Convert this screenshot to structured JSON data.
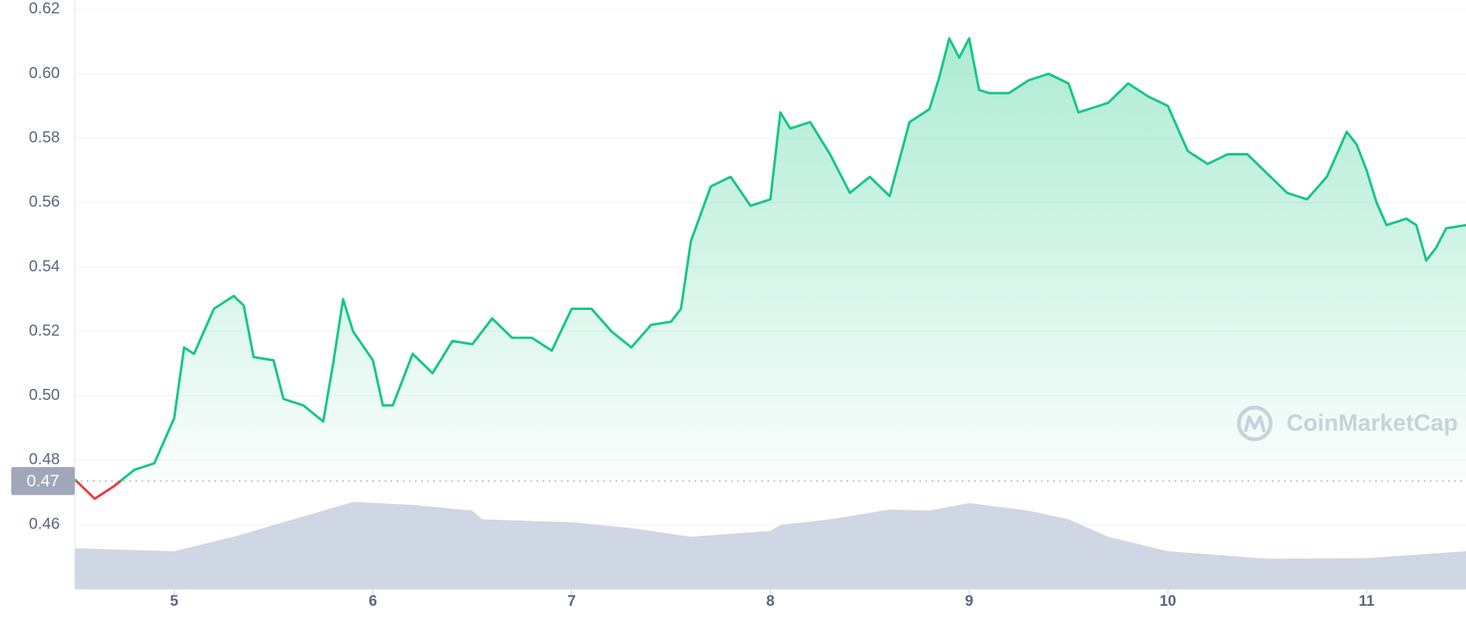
{
  "chart_data": {
    "type": "line",
    "x": [
      4.5,
      4.6,
      4.7,
      4.8,
      4.9,
      5.0,
      5.05,
      5.1,
      5.2,
      5.3,
      5.35,
      5.4,
      5.5,
      5.55,
      5.65,
      5.75,
      5.8,
      5.85,
      5.9,
      6.0,
      6.05,
      6.1,
      6.2,
      6.3,
      6.4,
      6.5,
      6.6,
      6.7,
      6.8,
      6.9,
      7.0,
      7.1,
      7.2,
      7.3,
      7.4,
      7.5,
      7.55,
      7.6,
      7.7,
      7.8,
      7.9,
      8.0,
      8.05,
      8.1,
      8.2,
      8.3,
      8.4,
      8.5,
      8.6,
      8.7,
      8.8,
      8.85,
      8.9,
      8.95,
      9.0,
      9.05,
      9.1,
      9.2,
      9.3,
      9.4,
      9.5,
      9.55,
      9.7,
      9.8,
      9.9,
      10.0,
      10.1,
      10.2,
      10.3,
      10.4,
      10.5,
      10.6,
      10.7,
      10.8,
      10.9,
      10.95,
      11.0,
      11.05,
      11.1,
      11.2,
      11.25,
      11.3,
      11.35,
      11.4,
      11.5
    ],
    "series": [
      {
        "color": "#16c784",
        "down_color": "#ea3943",
        "values": [
          0.474,
          0.468,
          0.472,
          0.477,
          0.479,
          0.493,
          0.515,
          0.513,
          0.527,
          0.531,
          0.528,
          0.512,
          0.511,
          0.499,
          0.497,
          0.492,
          0.51,
          0.53,
          0.52,
          0.511,
          0.497,
          0.497,
          0.513,
          0.507,
          0.517,
          0.516,
          0.524,
          0.518,
          0.518,
          0.514,
          0.527,
          0.527,
          0.52,
          0.515,
          0.522,
          0.523,
          0.527,
          0.548,
          0.565,
          0.568,
          0.559,
          0.561,
          0.588,
          0.583,
          0.585,
          0.575,
          0.563,
          0.568,
          0.562,
          0.585,
          0.589,
          0.599,
          0.611,
          0.605,
          0.611,
          0.595,
          0.594,
          0.594,
          0.598,
          0.6,
          0.597,
          0.588,
          0.591,
          0.597,
          0.593,
          0.59,
          0.576,
          0.572,
          0.575,
          0.575,
          0.569,
          0.563,
          0.561,
          0.568,
          0.582,
          0.578,
          0.57,
          0.56,
          0.553,
          0.555,
          0.553,
          0.542,
          0.546,
          0.552,
          0.553
        ]
      }
    ],
    "volume": {
      "color": "#cfd6e4",
      "x": [
        4.5,
        5.0,
        5.3,
        5.6,
        5.9,
        6.2,
        6.5,
        6.55,
        7.0,
        7.3,
        7.6,
        8.0,
        8.05,
        8.3,
        8.6,
        8.8,
        9.0,
        9.3,
        9.5,
        9.7,
        10.0,
        10.5,
        11.0,
        11.5
      ],
      "values": [
        7,
        6.5,
        9,
        12,
        15,
        14.5,
        13.5,
        12,
        11.5,
        10.5,
        9,
        10,
        11,
        12,
        13.7,
        13.5,
        14.8,
        13.5,
        12,
        9,
        6.5,
        5.2,
        5.3,
        6.5
      ],
      "lim": [
        0,
        100
      ]
    },
    "baseline": {
      "value": 0.4735,
      "label": "0.47"
    },
    "xlim": [
      4.5,
      11.5
    ],
    "xticks": [
      5,
      6,
      7,
      8,
      9,
      10,
      11
    ],
    "ylim": [
      0.44,
      0.62
    ],
    "yticks": [
      0.46,
      0.48,
      {
        "value": 0.5,
        "label": "0.50"
      },
      0.52,
      0.54,
      0.56,
      0.58,
      {
        "value": 0.6,
        "label": "0.60"
      },
      0.62
    ],
    "grid": true,
    "watermark": "CoinMarketCap"
  }
}
